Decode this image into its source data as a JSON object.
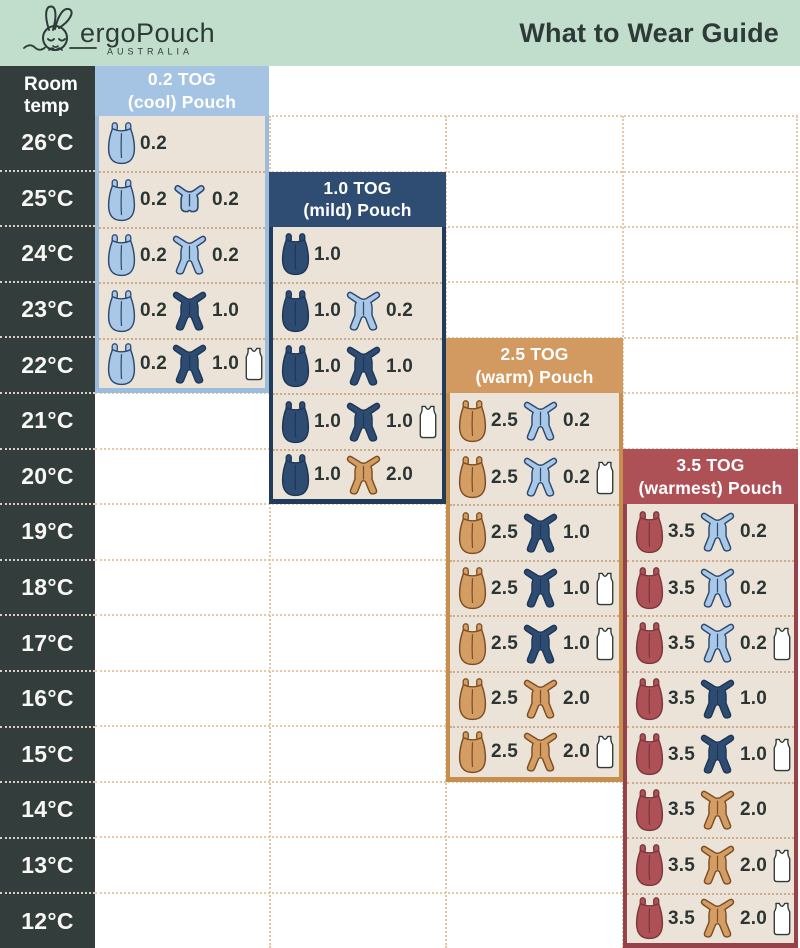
{
  "header": {
    "brand": "ergoPouch",
    "brand_sub": "AUSTRALIA",
    "title": "What to Wear Guide"
  },
  "temp_column": {
    "header_line1": "Room",
    "header_line2": "temp"
  },
  "icon_names": {
    "pouch": "sleep-pouch-icon",
    "sleepsuit": "long-sleeve-sleepsuit-icon",
    "romper": "short-sleeve-romper-icon",
    "singlet": "singlet-icon"
  },
  "colors": {
    "mint": "#c1ddcc",
    "dark": "#333e3c",
    "cream": "#ece3d8",
    "text": "#2b3634",
    "grid_dot": "#e8c7a6",
    "panel_dot": "#c9ad8e",
    "dark_dot": "#d8d0c4",
    "panel": {
      "blue": {
        "header": "#a5c3e2",
        "border": "#9cbcdd"
      },
      "navy": {
        "header": "#2f4d73",
        "border": "#203c5a"
      },
      "tan": {
        "header": "#d29a60",
        "border": "#c78f4e"
      },
      "red": {
        "header": "#ae5157",
        "border": "#96424a"
      }
    },
    "icon": {
      "blue": {
        "fill": "#a9c8e8",
        "stroke": "#2c4a70"
      },
      "navy": {
        "fill": "#2e4c72",
        "stroke": "#1c3757"
      },
      "tan": {
        "fill": "#d49d63",
        "stroke": "#7c4f23"
      },
      "red": {
        "fill": "#ad5156",
        "stroke": "#7a373d"
      },
      "white": {
        "fill": "#ffffff",
        "stroke": "#2f3b39"
      }
    }
  },
  "chart_data": {
    "type": "table",
    "title": "What to Wear Guide",
    "row_header": "Room temp",
    "columns": [
      "Room temp",
      "0.2 TOG (cool) Pouch",
      "1.0 TOG (mild) Pouch",
      "2.5 TOG (warm) Pouch",
      "3.5 TOG (warmest) Pouch"
    ],
    "temps": [
      "26°C",
      "25°C",
      "24°C",
      "23°C",
      "22°C",
      "21°C",
      "20°C",
      "19°C",
      "18°C",
      "17°C",
      "16°C",
      "15°C",
      "14°C",
      "13°C",
      "12°C"
    ],
    "panels": [
      {
        "label": "0.2 TOG (cool) Pouch",
        "title_line1": "0.2 TOG",
        "title_line2": "(cool) Pouch",
        "color_key": "blue",
        "pouch_tog": "0.2",
        "temp_range": {
          "max": "26°C",
          "min": "22°C"
        },
        "rows": [
          {
            "temp": "26°C",
            "items": [
              {
                "icon": "pouch",
                "color": "blue",
                "tog": "0.2"
              }
            ]
          },
          {
            "temp": "25°C",
            "items": [
              {
                "icon": "pouch",
                "color": "blue",
                "tog": "0.2"
              },
              {
                "icon": "romper",
                "color": "blue",
                "tog": "0.2"
              }
            ]
          },
          {
            "temp": "24°C",
            "items": [
              {
                "icon": "pouch",
                "color": "blue",
                "tog": "0.2"
              },
              {
                "icon": "sleepsuit",
                "color": "blue",
                "tog": "0.2"
              }
            ]
          },
          {
            "temp": "23°C",
            "items": [
              {
                "icon": "pouch",
                "color": "blue",
                "tog": "0.2"
              },
              {
                "icon": "sleepsuit",
                "color": "navy",
                "tog": "1.0"
              }
            ]
          },
          {
            "temp": "22°C",
            "items": [
              {
                "icon": "pouch",
                "color": "blue",
                "tog": "0.2"
              },
              {
                "icon": "sleepsuit",
                "color": "navy",
                "tog": "1.0"
              },
              {
                "icon": "singlet"
              }
            ]
          }
        ]
      },
      {
        "label": "1.0 TOG (mild) Pouch",
        "title_line1": "1.0 TOG",
        "title_line2": "(mild) Pouch",
        "color_key": "navy",
        "pouch_tog": "1.0",
        "temp_range": {
          "max": "24°C",
          "min": "20°C"
        },
        "rows": [
          {
            "temp": "24°C",
            "items": [
              {
                "icon": "pouch",
                "color": "navy",
                "tog": "1.0"
              }
            ]
          },
          {
            "temp": "23°C",
            "items": [
              {
                "icon": "pouch",
                "color": "navy",
                "tog": "1.0"
              },
              {
                "icon": "sleepsuit",
                "color": "blue",
                "tog": "0.2"
              }
            ]
          },
          {
            "temp": "22°C",
            "items": [
              {
                "icon": "pouch",
                "color": "navy",
                "tog": "1.0"
              },
              {
                "icon": "sleepsuit",
                "color": "navy",
                "tog": "1.0"
              }
            ]
          },
          {
            "temp": "21°C",
            "items": [
              {
                "icon": "pouch",
                "color": "navy",
                "tog": "1.0"
              },
              {
                "icon": "sleepsuit",
                "color": "navy",
                "tog": "1.0"
              },
              {
                "icon": "singlet"
              }
            ]
          },
          {
            "temp": "20°C",
            "items": [
              {
                "icon": "pouch",
                "color": "navy",
                "tog": "1.0"
              },
              {
                "icon": "sleepsuit",
                "color": "tan",
                "tog": "2.0"
              }
            ]
          }
        ]
      },
      {
        "label": "2.5 TOG (warm) Pouch",
        "title_line1": "2.5 TOG",
        "title_line2": "(warm) Pouch",
        "color_key": "tan",
        "pouch_tog": "2.5",
        "temp_range": {
          "max": "21°C",
          "min": "15°C"
        },
        "rows": [
          {
            "temp": "21°C",
            "items": [
              {
                "icon": "pouch",
                "color": "tan",
                "tog": "2.5"
              },
              {
                "icon": "sleepsuit",
                "color": "blue",
                "tog": "0.2"
              }
            ]
          },
          {
            "temp": "20°C",
            "items": [
              {
                "icon": "pouch",
                "color": "tan",
                "tog": "2.5"
              },
              {
                "icon": "sleepsuit",
                "color": "blue",
                "tog": "0.2"
              },
              {
                "icon": "singlet"
              }
            ]
          },
          {
            "temp": "19°C",
            "items": [
              {
                "icon": "pouch",
                "color": "tan",
                "tog": "2.5"
              },
              {
                "icon": "sleepsuit",
                "color": "navy",
                "tog": "1.0"
              }
            ]
          },
          {
            "temp": "18°C",
            "items": [
              {
                "icon": "pouch",
                "color": "tan",
                "tog": "2.5"
              },
              {
                "icon": "sleepsuit",
                "color": "navy",
                "tog": "1.0"
              },
              {
                "icon": "singlet"
              }
            ]
          },
          {
            "temp": "17°C",
            "items": [
              {
                "icon": "pouch",
                "color": "tan",
                "tog": "2.5"
              },
              {
                "icon": "sleepsuit",
                "color": "navy",
                "tog": "1.0"
              },
              {
                "icon": "singlet"
              }
            ]
          },
          {
            "temp": "16°C",
            "items": [
              {
                "icon": "pouch",
                "color": "tan",
                "tog": "2.5"
              },
              {
                "icon": "sleepsuit",
                "color": "tan",
                "tog": "2.0"
              }
            ]
          },
          {
            "temp": "15°C",
            "items": [
              {
                "icon": "pouch",
                "color": "tan",
                "tog": "2.5"
              },
              {
                "icon": "sleepsuit",
                "color": "tan",
                "tog": "2.0"
              },
              {
                "icon": "singlet"
              }
            ]
          }
        ]
      },
      {
        "label": "3.5 TOG (warmest) Pouch",
        "title_line1": "3.5 TOG",
        "title_line2": "(warmest) Pouch",
        "color_key": "red",
        "pouch_tog": "3.5",
        "temp_range": {
          "max": "19°C",
          "min": "12°C"
        },
        "rows": [
          {
            "temp": "19°C",
            "items": [
              {
                "icon": "pouch",
                "color": "red",
                "tog": "3.5"
              },
              {
                "icon": "sleepsuit",
                "color": "blue",
                "tog": "0.2"
              }
            ]
          },
          {
            "temp": "18°C",
            "items": [
              {
                "icon": "pouch",
                "color": "red",
                "tog": "3.5"
              },
              {
                "icon": "sleepsuit",
                "color": "blue",
                "tog": "0.2"
              }
            ]
          },
          {
            "temp": "17°C",
            "items": [
              {
                "icon": "pouch",
                "color": "red",
                "tog": "3.5"
              },
              {
                "icon": "sleepsuit",
                "color": "blue",
                "tog": "0.2"
              },
              {
                "icon": "singlet"
              }
            ]
          },
          {
            "temp": "16°C",
            "items": [
              {
                "icon": "pouch",
                "color": "red",
                "tog": "3.5"
              },
              {
                "icon": "sleepsuit",
                "color": "navy",
                "tog": "1.0"
              }
            ]
          },
          {
            "temp": "15°C",
            "items": [
              {
                "icon": "pouch",
                "color": "red",
                "tog": "3.5"
              },
              {
                "icon": "sleepsuit",
                "color": "navy",
                "tog": "1.0"
              },
              {
                "icon": "singlet"
              }
            ]
          },
          {
            "temp": "14°C",
            "items": [
              {
                "icon": "pouch",
                "color": "red",
                "tog": "3.5"
              },
              {
                "icon": "sleepsuit",
                "color": "tan",
                "tog": "2.0"
              }
            ]
          },
          {
            "temp": "13°C",
            "items": [
              {
                "icon": "pouch",
                "color": "red",
                "tog": "3.5"
              },
              {
                "icon": "sleepsuit",
                "color": "tan",
                "tog": "2.0"
              },
              {
                "icon": "singlet"
              }
            ]
          },
          {
            "temp": "12°C",
            "items": [
              {
                "icon": "pouch",
                "color": "red",
                "tog": "3.5"
              },
              {
                "icon": "sleepsuit",
                "color": "tan",
                "tog": "2.0"
              },
              {
                "icon": "singlet"
              }
            ]
          }
        ]
      }
    ]
  }
}
